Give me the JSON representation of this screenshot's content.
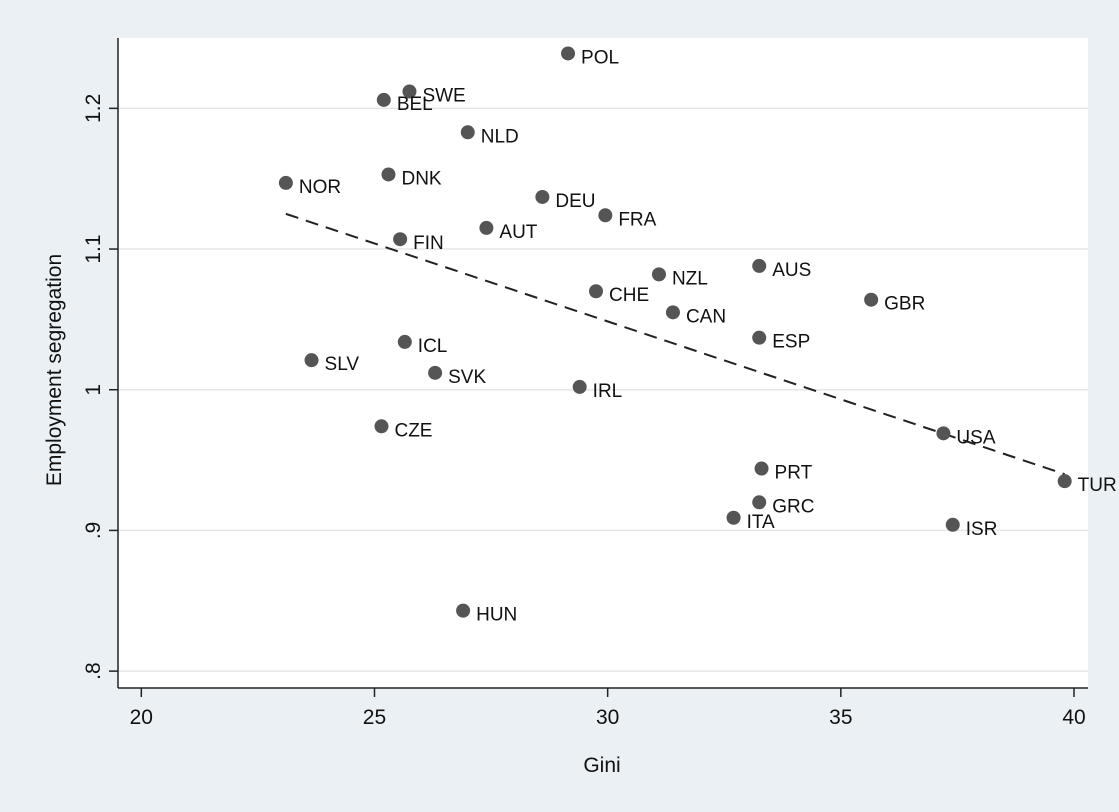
{
  "chart_data": {
    "type": "scatter",
    "xlabel": "Gini",
    "ylabel": "Employment segregation",
    "xlim": [
      19.5,
      40.3
    ],
    "ylim": [
      0.788,
      1.25
    ],
    "x_ticks": [
      20,
      25,
      30,
      35,
      40
    ],
    "x_tick_labels": [
      "20",
      "25",
      "30",
      "35",
      "40"
    ],
    "y_ticks": [
      0.8,
      0.9,
      1.0,
      1.1,
      1.2
    ],
    "y_tick_labels": [
      ".8",
      ".9",
      "1",
      "1.1",
      "1.2"
    ],
    "grid": "horizontal",
    "points": [
      {
        "label": "POL",
        "x": 29.15,
        "y": 1.239
      },
      {
        "label": "SWE",
        "x": 25.75,
        "y": 1.212
      },
      {
        "label": "BEL",
        "x": 25.2,
        "y": 1.206
      },
      {
        "label": "NLD",
        "x": 27.0,
        "y": 1.183
      },
      {
        "label": "NOR",
        "x": 23.1,
        "y": 1.147
      },
      {
        "label": "DNK",
        "x": 25.3,
        "y": 1.153
      },
      {
        "label": "DEU",
        "x": 28.6,
        "y": 1.137
      },
      {
        "label": "FRA",
        "x": 29.95,
        "y": 1.124
      },
      {
        "label": "AUT",
        "x": 27.4,
        "y": 1.115
      },
      {
        "label": "FIN",
        "x": 25.55,
        "y": 1.107
      },
      {
        "label": "AUS",
        "x": 33.25,
        "y": 1.088
      },
      {
        "label": "NZL",
        "x": 31.1,
        "y": 1.082
      },
      {
        "label": "CHE",
        "x": 29.75,
        "y": 1.07
      },
      {
        "label": "GBR",
        "x": 35.65,
        "y": 1.064
      },
      {
        "label": "CAN",
        "x": 31.4,
        "y": 1.055
      },
      {
        "label": "ESP",
        "x": 33.25,
        "y": 1.037
      },
      {
        "label": "ICL",
        "x": 25.65,
        "y": 1.034
      },
      {
        "label": "SLV",
        "x": 23.65,
        "y": 1.021
      },
      {
        "label": "SVK",
        "x": 26.3,
        "y": 1.012
      },
      {
        "label": "IRL",
        "x": 29.4,
        "y": 1.002
      },
      {
        "label": "CZE",
        "x": 25.15,
        "y": 0.974
      },
      {
        "label": "USA",
        "x": 37.2,
        "y": 0.969
      },
      {
        "label": "PRT",
        "x": 33.3,
        "y": 0.944
      },
      {
        "label": "TUR",
        "x": 39.8,
        "y": 0.935
      },
      {
        "label": "GRC",
        "x": 33.25,
        "y": 0.92
      },
      {
        "label": "ITA",
        "x": 32.7,
        "y": 0.909
      },
      {
        "label": "ISR",
        "x": 37.4,
        "y": 0.904
      },
      {
        "label": "HUN",
        "x": 26.9,
        "y": 0.843
      }
    ],
    "fit_line": {
      "x": [
        23.1,
        39.8
      ],
      "y": [
        1.125,
        0.94
      ],
      "style": "dashed"
    },
    "colors": {
      "point": "#555555",
      "line": "#222222",
      "grid": "#e6e6e6",
      "background": "#eaf0f4",
      "plot_background": "#ffffff"
    }
  }
}
